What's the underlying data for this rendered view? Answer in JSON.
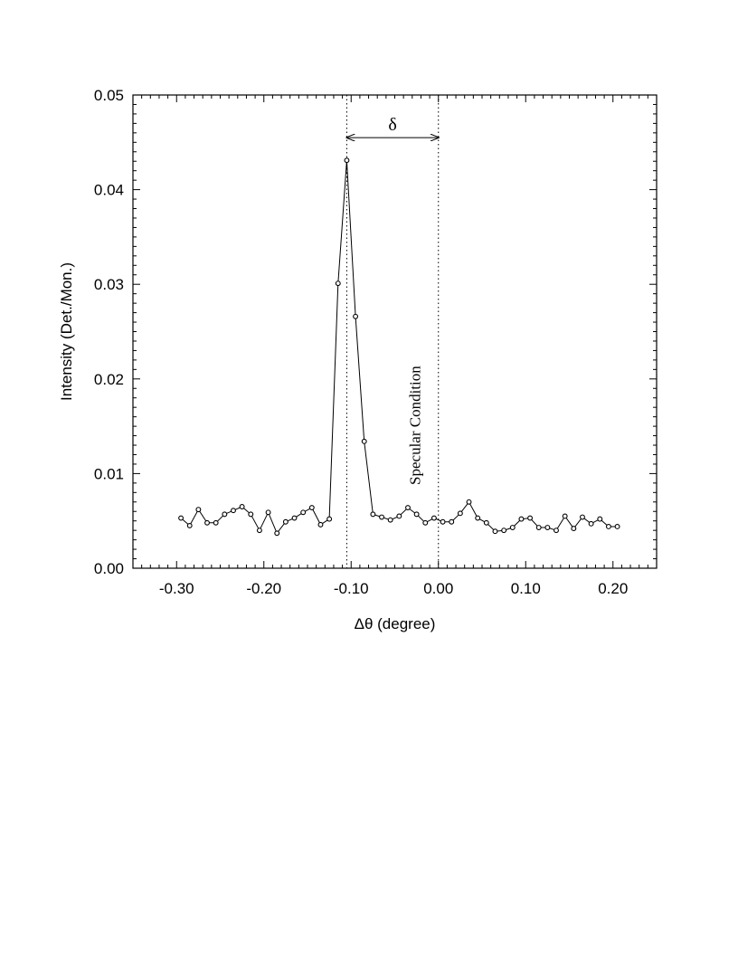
{
  "chart_data": {
    "type": "line",
    "title": "",
    "xlabel": "Δθ (degree)",
    "ylabel": "Intensity (Det./Mon.)",
    "xlim": [
      -0.35,
      0.25
    ],
    "ylim": [
      0,
      0.05
    ],
    "x_ticks": [
      -0.3,
      -0.2,
      -0.1,
      0.0,
      0.1,
      0.2
    ],
    "x_tick_labels": [
      "-0.30",
      "-0.20",
      "-0.10",
      "0.00",
      "0.10",
      "0.20"
    ],
    "y_ticks": [
      0,
      0.01,
      0.02,
      0.03,
      0.04,
      0.05
    ],
    "y_tick_labels": [
      "0.00",
      "0.01",
      "0.02",
      "0.03",
      "0.04",
      "0.05"
    ],
    "grid": false,
    "legend": "none",
    "series": [
      {
        "marker": "open-circle",
        "line": "solid",
        "color": "#000000",
        "x": [
          -0.295,
          -0.285,
          -0.275,
          -0.265,
          -0.255,
          -0.245,
          -0.235,
          -0.225,
          -0.215,
          -0.205,
          -0.195,
          -0.185,
          -0.175,
          -0.165,
          -0.155,
          -0.145,
          -0.135,
          -0.125,
          -0.115,
          -0.105,
          -0.095,
          -0.085,
          -0.075,
          -0.065,
          -0.055,
          -0.045,
          -0.035,
          -0.025,
          -0.015,
          -0.005,
          0.005,
          0.015,
          0.025,
          0.035,
          0.045,
          0.055,
          0.065,
          0.075,
          0.085,
          0.095,
          0.105,
          0.115,
          0.125,
          0.135,
          0.145,
          0.155,
          0.165,
          0.175,
          0.185,
          0.195,
          0.205
        ],
        "y": [
          0.0053,
          0.0045,
          0.0062,
          0.0048,
          0.0048,
          0.0057,
          0.0061,
          0.0065,
          0.0057,
          0.004,
          0.0059,
          0.0037,
          0.0049,
          0.0053,
          0.0059,
          0.0064,
          0.0046,
          0.0052,
          0.0301,
          0.0431,
          0.0266,
          0.0134,
          0.0057,
          0.0054,
          0.0051,
          0.0055,
          0.0064,
          0.0057,
          0.0048,
          0.0053,
          0.0049,
          0.0049,
          0.0058,
          0.007,
          0.0053,
          0.0048,
          0.0039,
          0.004,
          0.0043,
          0.0052,
          0.0053,
          0.0043,
          0.0043,
          0.004,
          0.0055,
          0.0042,
          0.0054,
          0.0047,
          0.0052,
          0.0044,
          0.0044
        ]
      }
    ],
    "vlines": [
      {
        "x": -0.105,
        "style": "dotted"
      },
      {
        "x": 0.0,
        "style": "dotted"
      }
    ],
    "annotations": [
      {
        "text": "δ",
        "type": "double-arrow",
        "x_from": -0.105,
        "x_to": 0.0,
        "y": 0.0455
      },
      {
        "text": "Specular Condition",
        "orientation": "vertical",
        "x": -0.015,
        "y": 0.0088
      }
    ]
  }
}
